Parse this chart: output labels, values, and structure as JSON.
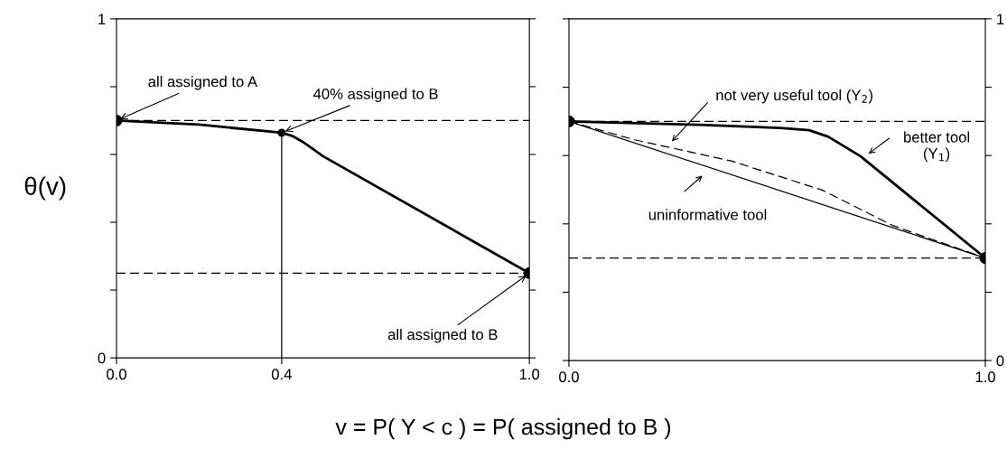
{
  "chart_data": [
    {
      "type": "line",
      "ylabel": "θ(v)",
      "xlabel": "v = P( Y < c ) = P( assigned to B )",
      "xlim": [
        0,
        1
      ],
      "xticks": [
        {
          "value": 0,
          "label": "0.0"
        },
        {
          "value": 0.4,
          "label": "0.4"
        },
        {
          "value": 1,
          "label": "1.0"
        }
      ],
      "ylim": [
        0,
        1
      ],
      "yticks": [
        0,
        {
          "value": 0.2,
          "label": null
        },
        {
          "value": 0.4,
          "label": null
        },
        {
          "value": 0.6,
          "label": null
        },
        {
          "value": 0.8,
          "label": null
        },
        1
      ],
      "grid": false,
      "series": [
        {
          "color": "#000000",
          "line_style": "solid",
          "x": [
            0,
            0.2,
            0.4,
            0.425,
            0.45,
            0.475,
            0.5,
            1.0
          ],
          "values": [
            0.7,
            0.688,
            0.664,
            0.655,
            0.638,
            0.617,
            0.595,
            0.25
          ]
        },
        {
          "color": "#000000",
          "line_style": "solid",
          "x": [
            0.4,
            0.4
          ],
          "values": [
            0,
            0.664
          ]
        },
        {
          "type": "scatter",
          "color": "#000000",
          "marker": "circle",
          "x": [
            0,
            0.4,
            1.0
          ],
          "values": [
            0.7,
            0.664,
            0.25
          ]
        }
      ],
      "ref_lines": [
        {
          "axis": "y",
          "value": 0.7,
          "line_style": "dashed",
          "color": "#000000"
        },
        {
          "axis": "y",
          "value": 0.25,
          "line_style": "dashed",
          "color": "#000000"
        }
      ],
      "annotations": [
        {
          "text": "all assigned to A",
          "x": 0,
          "y": 0.7
        },
        {
          "text": "40% assigned to B",
          "x": 0.4,
          "y": 0.664
        },
        {
          "text": "all assigned to B",
          "x": 1.0,
          "y": 0.25
        }
      ]
    },
    {
      "type": "line",
      "xlim": [
        0,
        1
      ],
      "xticks": [
        {
          "value": 0,
          "label": "0.0"
        },
        {
          "value": 1,
          "label": "1.0"
        }
      ],
      "y2lim": [
        0,
        1
      ],
      "y2ticks": [
        0,
        {
          "value": 0.2,
          "label": null
        },
        {
          "value": 0.4,
          "label": null
        },
        {
          "value": 0.6,
          "label": null
        },
        {
          "value": 0.8,
          "label": null
        },
        1
      ],
      "grid": false,
      "series": [
        {
          "axis": "y2",
          "color": "#000000",
          "line_style": "solid",
          "x": [
            0,
            0.313,
            0.507,
            0.577,
            0.623,
            0.7,
            1.0
          ],
          "values": [
            0.7,
            0.69,
            0.681,
            0.674,
            0.655,
            0.598,
            0.3
          ]
        },
        {
          "axis": "y2",
          "color": "#000000",
          "line_style": "dashed",
          "x": [
            0,
            0.158,
            0.39,
            0.608,
            0.778,
            1.0
          ],
          "values": [
            0.7,
            0.646,
            0.584,
            0.499,
            0.395,
            0.3
          ]
        },
        {
          "axis": "y2",
          "color": "#000000",
          "line_style": "solid",
          "x": [
            0,
            1.0
          ],
          "values": [
            0.7,
            0.3
          ]
        },
        {
          "type": "scatter",
          "axis": "y2",
          "color": "#000000",
          "marker": "circle",
          "x": [
            0,
            1.0
          ],
          "values": [
            0.7,
            0.3
          ]
        }
      ],
      "ref_lines": [
        {
          "axis": "y2",
          "value": 0.7,
          "line_style": "dashed",
          "color": "#000000"
        },
        {
          "axis": "y2",
          "value": 0.3,
          "line_style": "dashed",
          "color": "#000000"
        }
      ],
      "annotations": [
        "not very useful tool (Y$_{2}$)",
        "better tool\n(Y$_{1}$)",
        "uninformative tool"
      ]
    }
  ]
}
